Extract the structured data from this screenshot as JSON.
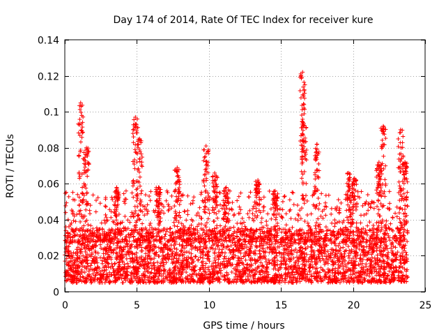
{
  "chart_data": {
    "type": "scatter",
    "title": "Day 174 of 2014, Rate Of TEC Index for receiver kure",
    "xlabel": "GPS time / hours",
    "ylabel": "ROTI / TECUs",
    "xlim": [
      0,
      25
    ],
    "ylim": [
      0,
      0.14
    ],
    "x_ticks": [
      0,
      5,
      10,
      15,
      20,
      25
    ],
    "x_tick_labels": [
      "0",
      "5",
      "10",
      "15",
      "20",
      "25"
    ],
    "y_ticks": [
      0,
      0.02,
      0.04,
      0.06,
      0.08,
      0.1,
      0.12,
      0.14
    ],
    "y_tick_labels": [
      "0",
      "0.02",
      "0.04",
      "0.06",
      "0.08",
      "0.1",
      "0.12",
      "0.14"
    ],
    "grid": true,
    "marker": "+",
    "series": [
      {
        "name": "ROTI",
        "color": "#ff0000",
        "x_range": [
          0,
          23.8
        ],
        "baseline_range": [
          0.005,
          0.035
        ],
        "peaks": [
          {
            "x": 1.1,
            "y": 0.105
          },
          {
            "x": 1.5,
            "y": 0.08
          },
          {
            "x": 3.6,
            "y": 0.058
          },
          {
            "x": 4.9,
            "y": 0.097
          },
          {
            "x": 5.2,
            "y": 0.085
          },
          {
            "x": 6.5,
            "y": 0.058
          },
          {
            "x": 7.8,
            "y": 0.069
          },
          {
            "x": 9.8,
            "y": 0.081
          },
          {
            "x": 10.4,
            "y": 0.066
          },
          {
            "x": 11.2,
            "y": 0.058
          },
          {
            "x": 13.4,
            "y": 0.062
          },
          {
            "x": 14.6,
            "y": 0.056
          },
          {
            "x": 16.5,
            "y": 0.122
          },
          {
            "x": 16.6,
            "y": 0.104
          },
          {
            "x": 17.5,
            "y": 0.082
          },
          {
            "x": 19.7,
            "y": 0.066
          },
          {
            "x": 20.1,
            "y": 0.063
          },
          {
            "x": 21.8,
            "y": 0.072
          },
          {
            "x": 22.1,
            "y": 0.092
          },
          {
            "x": 23.3,
            "y": 0.09
          },
          {
            "x": 23.6,
            "y": 0.072
          }
        ]
      }
    ]
  }
}
